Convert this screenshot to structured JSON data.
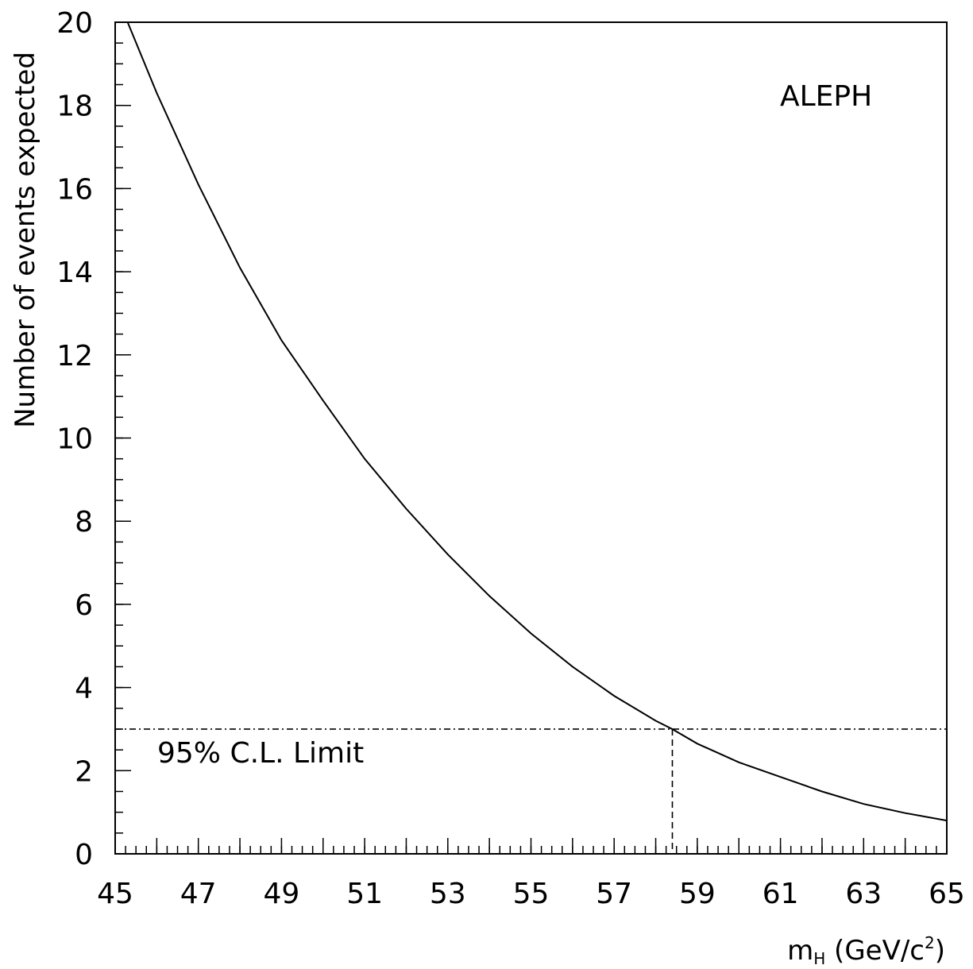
{
  "chart_data": {
    "type": "line",
    "title": "",
    "xlabel": "m",
    "xlabel_subscript": "H",
    "xlabel_units_prefix": " (GeV/c",
    "xlabel_units_sup": "2",
    "xlabel_units_suffix": ")",
    "ylabel": "Number of events expected",
    "xlim": [
      45,
      65
    ],
    "ylim": [
      0,
      20
    ],
    "x_ticks": [
      45,
      47,
      49,
      51,
      53,
      55,
      57,
      59,
      61,
      63,
      65
    ],
    "y_ticks": [
      0,
      2,
      4,
      6,
      8,
      10,
      12,
      14,
      16,
      18,
      20
    ],
    "grid": false,
    "series": [
      {
        "x": [
          45.3,
          46,
          47,
          48,
          49,
          50,
          51,
          52,
          53,
          54,
          55,
          56,
          57,
          58,
          58.4,
          59,
          60,
          61,
          62,
          63,
          64,
          65
        ],
        "y": [
          20.0,
          18.3,
          16.1,
          14.1,
          12.35,
          10.9,
          9.5,
          8.3,
          7.2,
          6.2,
          5.3,
          4.5,
          3.8,
          3.2,
          3.0,
          2.65,
          2.2,
          1.85,
          1.5,
          1.2,
          0.98,
          0.8
        ]
      }
    ],
    "limit_line": {
      "y": 3,
      "label": "95% C.L. Limit"
    },
    "limit_cross_x": 58.4,
    "annotation": "ALEPH"
  }
}
